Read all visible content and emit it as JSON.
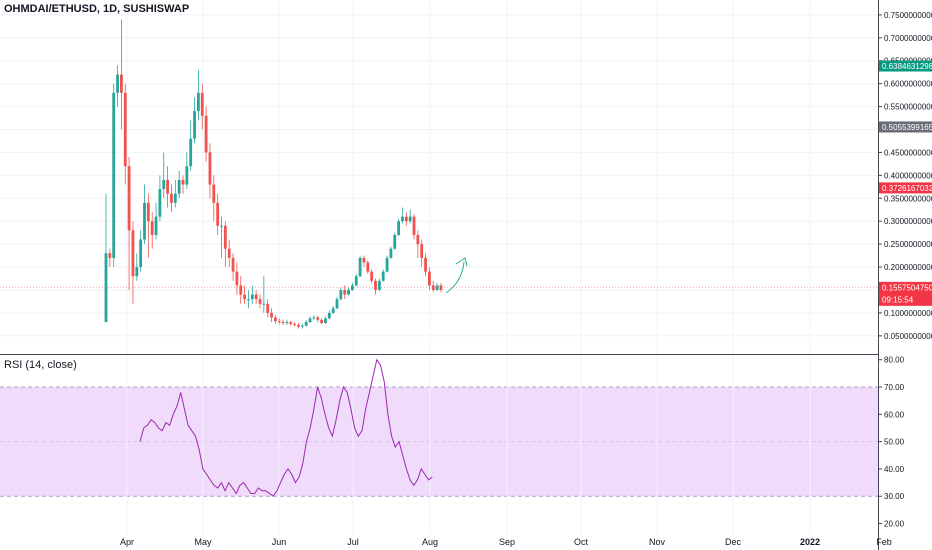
{
  "header": {
    "symbol_label": "OHMDAI/ETHUSD, 1D, SUSHISWAP"
  },
  "rsi": {
    "label": "RSI (14, close)",
    "line_color": "#9c27b0",
    "band_color": "#f0dcfa"
  },
  "colors": {
    "up": "#26a69a",
    "down": "#ef5350",
    "grid": "#f0f3fa",
    "divider": "#434651"
  },
  "chart_data": [
    {
      "type": "candlestick",
      "title": "OHMDAI/ETHUSD, 1D, SUSHISWAP",
      "y_axis_labels": [
        "0.7500000000",
        "0.7000000000",
        "0.6500000000",
        "0.6000000000",
        "0.5500000000",
        "0.5000000000",
        "0.4500000000",
        "0.4000000000",
        "0.3500000000",
        "0.3000000000",
        "0.2500000000",
        "0.2000000000",
        "0.1500000000",
        "0.1000000000",
        "0.0500000000"
      ],
      "y_ticks": [
        0.75,
        0.7,
        0.65,
        0.6,
        0.55,
        0.5,
        0.45,
        0.4,
        0.35,
        0.3,
        0.25,
        0.2,
        0.15,
        0.1,
        0.05
      ],
      "ylim": [
        0.03,
        0.765
      ],
      "x_tick_labels": [
        "Apr",
        "May",
        "Jun",
        "Jul",
        "Aug",
        "Sep",
        "Oct",
        "Nov",
        "Dec",
        "2022",
        "Feb"
      ],
      "price_markers": [
        {
          "value": 0.6384631298,
          "label": "0.6384631298",
          "color": "#089981"
        },
        {
          "value": 0.5055399165,
          "label": "0.5055399165",
          "color": "#6a6d78"
        },
        {
          "value": 0.3726167032,
          "label": "0.3726167032",
          "color": "#f23645"
        },
        {
          "value": 0.155750475,
          "label": "0.1557504750",
          "color": "#f23645"
        }
      ],
      "countdown": "09:15:54",
      "last_price_line": 0.155750475,
      "ohlc": [
        [
          0.08,
          0.23,
          0.08,
          0.36
        ],
        [
          0.23,
          0.22,
          0.2,
          0.24
        ],
        [
          0.22,
          0.58,
          0.2,
          0.6
        ],
        [
          0.58,
          0.62,
          0.55,
          0.64
        ],
        [
          0.62,
          0.58,
          0.5,
          0.74
        ],
        [
          0.58,
          0.42,
          0.38,
          0.6
        ],
        [
          0.42,
          0.28,
          0.15,
          0.44
        ],
        [
          0.28,
          0.18,
          0.12,
          0.3
        ],
        [
          0.18,
          0.2,
          0.17,
          0.23
        ],
        [
          0.2,
          0.26,
          0.19,
          0.28
        ],
        [
          0.26,
          0.34,
          0.25,
          0.38
        ],
        [
          0.34,
          0.3,
          0.22,
          0.36
        ],
        [
          0.3,
          0.27,
          0.24,
          0.32
        ],
        [
          0.27,
          0.31,
          0.26,
          0.34
        ],
        [
          0.31,
          0.37,
          0.3,
          0.4
        ],
        [
          0.37,
          0.39,
          0.35,
          0.45
        ],
        [
          0.39,
          0.36,
          0.33,
          0.42
        ],
        [
          0.36,
          0.34,
          0.32,
          0.38
        ],
        [
          0.34,
          0.36,
          0.33,
          0.39
        ],
        [
          0.36,
          0.39,
          0.35,
          0.41
        ],
        [
          0.39,
          0.38,
          0.36,
          0.4
        ],
        [
          0.38,
          0.42,
          0.37,
          0.45
        ],
        [
          0.42,
          0.48,
          0.41,
          0.52
        ],
        [
          0.48,
          0.54,
          0.47,
          0.57
        ],
        [
          0.54,
          0.58,
          0.52,
          0.63
        ],
        [
          0.58,
          0.53,
          0.5,
          0.6
        ],
        [
          0.53,
          0.45,
          0.43,
          0.55
        ],
        [
          0.45,
          0.38,
          0.35,
          0.47
        ],
        [
          0.38,
          0.34,
          0.3,
          0.4
        ],
        [
          0.34,
          0.29,
          0.27,
          0.36
        ],
        [
          0.29,
          0.29,
          0.22,
          0.31
        ],
        [
          0.29,
          0.24,
          0.2,
          0.3
        ],
        [
          0.24,
          0.22,
          0.2,
          0.26
        ],
        [
          0.22,
          0.19,
          0.17,
          0.23
        ],
        [
          0.19,
          0.16,
          0.14,
          0.21
        ],
        [
          0.16,
          0.14,
          0.12,
          0.18
        ],
        [
          0.14,
          0.13,
          0.12,
          0.16
        ],
        [
          0.13,
          0.13,
          0.11,
          0.15
        ],
        [
          0.13,
          0.14,
          0.12,
          0.16
        ],
        [
          0.14,
          0.13,
          0.12,
          0.15
        ],
        [
          0.13,
          0.12,
          0.11,
          0.14
        ],
        [
          0.12,
          0.12,
          0.1,
          0.18
        ],
        [
          0.12,
          0.1,
          0.09,
          0.13
        ],
        [
          0.1,
          0.09,
          0.08,
          0.11
        ],
        [
          0.09,
          0.082,
          0.076,
          0.095
        ],
        [
          0.082,
          0.08,
          0.075,
          0.088
        ],
        [
          0.08,
          0.078,
          0.074,
          0.086
        ],
        [
          0.078,
          0.08,
          0.074,
          0.085
        ],
        [
          0.08,
          0.076,
          0.072,
          0.083
        ],
        [
          0.076,
          0.074,
          0.07,
          0.08
        ],
        [
          0.074,
          0.07,
          0.066,
          0.078
        ],
        [
          0.07,
          0.072,
          0.066,
          0.076
        ],
        [
          0.072,
          0.08,
          0.07,
          0.084
        ],
        [
          0.08,
          0.088,
          0.078,
          0.092
        ],
        [
          0.088,
          0.09,
          0.085,
          0.095
        ],
        [
          0.09,
          0.085,
          0.08,
          0.094
        ],
        [
          0.085,
          0.078,
          0.075,
          0.088
        ],
        [
          0.078,
          0.088,
          0.076,
          0.092
        ],
        [
          0.088,
          0.1,
          0.086,
          0.105
        ],
        [
          0.1,
          0.11,
          0.097,
          0.115
        ],
        [
          0.11,
          0.13,
          0.108,
          0.135
        ],
        [
          0.13,
          0.15,
          0.127,
          0.155
        ],
        [
          0.15,
          0.14,
          0.13,
          0.16
        ],
        [
          0.14,
          0.15,
          0.138,
          0.155
        ],
        [
          0.15,
          0.16,
          0.148,
          0.165
        ],
        [
          0.16,
          0.18,
          0.158,
          0.185
        ],
        [
          0.18,
          0.22,
          0.178,
          0.225
        ],
        [
          0.22,
          0.21,
          0.2,
          0.225
        ],
        [
          0.21,
          0.19,
          0.185,
          0.215
        ],
        [
          0.19,
          0.17,
          0.165,
          0.195
        ],
        [
          0.17,
          0.15,
          0.14,
          0.175
        ],
        [
          0.15,
          0.17,
          0.148,
          0.175
        ],
        [
          0.17,
          0.19,
          0.168,
          0.195
        ],
        [
          0.19,
          0.22,
          0.188,
          0.225
        ],
        [
          0.22,
          0.24,
          0.218,
          0.245
        ],
        [
          0.24,
          0.27,
          0.238,
          0.275
        ],
        [
          0.27,
          0.3,
          0.268,
          0.305
        ],
        [
          0.3,
          0.31,
          0.295,
          0.33
        ],
        [
          0.31,
          0.3,
          0.29,
          0.32
        ],
        [
          0.3,
          0.31,
          0.295,
          0.325
        ],
        [
          0.31,
          0.27,
          0.26,
          0.315
        ],
        [
          0.27,
          0.25,
          0.22,
          0.28
        ],
        [
          0.25,
          0.22,
          0.2,
          0.26
        ],
        [
          0.22,
          0.19,
          0.18,
          0.23
        ],
        [
          0.19,
          0.16,
          0.15,
          0.2
        ],
        [
          0.16,
          0.15,
          0.145,
          0.17
        ],
        [
          0.15,
          0.16,
          0.148,
          0.165
        ],
        [
          0.16,
          0.15,
          0.145,
          0.165
        ]
      ]
    },
    {
      "type": "line",
      "title": "RSI (14, close)",
      "y_axis_labels": [
        "80.00",
        "70.00",
        "60.00",
        "50.00",
        "40.00",
        "30.00",
        "20.00"
      ],
      "y_ticks": [
        80,
        70,
        60,
        50,
        40,
        30,
        20
      ],
      "ylim": [
        18,
        81
      ],
      "band": [
        30,
        70
      ],
      "values": [
        50,
        55,
        56,
        58,
        57,
        55,
        54,
        57,
        56,
        60,
        63,
        68,
        62,
        56,
        54,
        52,
        47,
        40,
        38,
        36,
        34,
        33,
        35,
        32,
        35,
        33,
        31,
        34,
        35,
        33,
        31,
        31,
        33,
        32,
        32,
        31,
        30,
        32,
        35,
        38,
        40,
        38,
        35,
        37,
        42,
        50,
        55,
        62,
        70,
        66,
        60,
        55,
        52,
        58,
        65,
        70,
        68,
        62,
        55,
        52,
        54,
        62,
        68,
        74,
        80,
        78,
        72,
        60,
        52,
        48,
        50,
        45,
        40,
        36,
        34,
        36,
        40,
        38,
        36,
        37
      ]
    }
  ]
}
